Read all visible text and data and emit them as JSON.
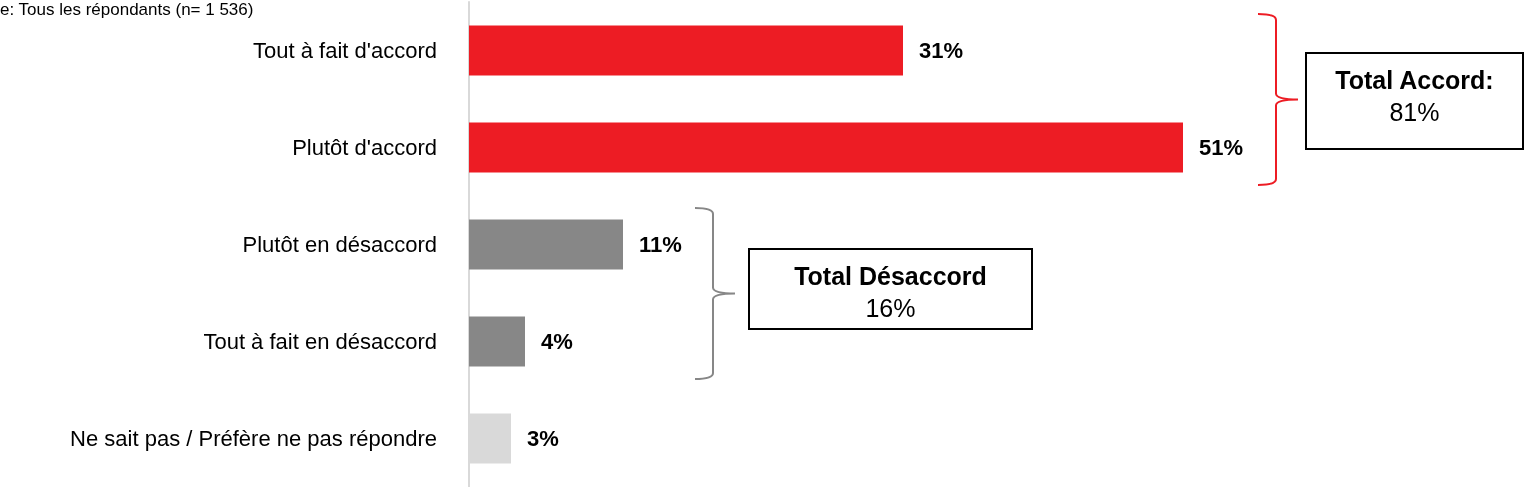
{
  "chart_data": {
    "type": "bar",
    "orientation": "horizontal",
    "subtitle": "e: Tous les répondants (n= 1 536)",
    "categories": [
      "Tout à fait d'accord",
      "Plutôt d'accord",
      "Plutôt en désaccord",
      "Tout à fait en désaccord",
      "Ne sait pas / Préfère ne pas répondre"
    ],
    "values": [
      31,
      51,
      11,
      4,
      3
    ],
    "colors": [
      "#ed1c24",
      "#ed1c24",
      "#878787",
      "#878787",
      "#d9d9d9"
    ],
    "value_labels": [
      "31%",
      "51%",
      "11%",
      "4%",
      "3%"
    ],
    "annotations": [
      "Total Accord:\n81%",
      "Total Désaccord\n16%"
    ],
    "grid": false
  }
}
